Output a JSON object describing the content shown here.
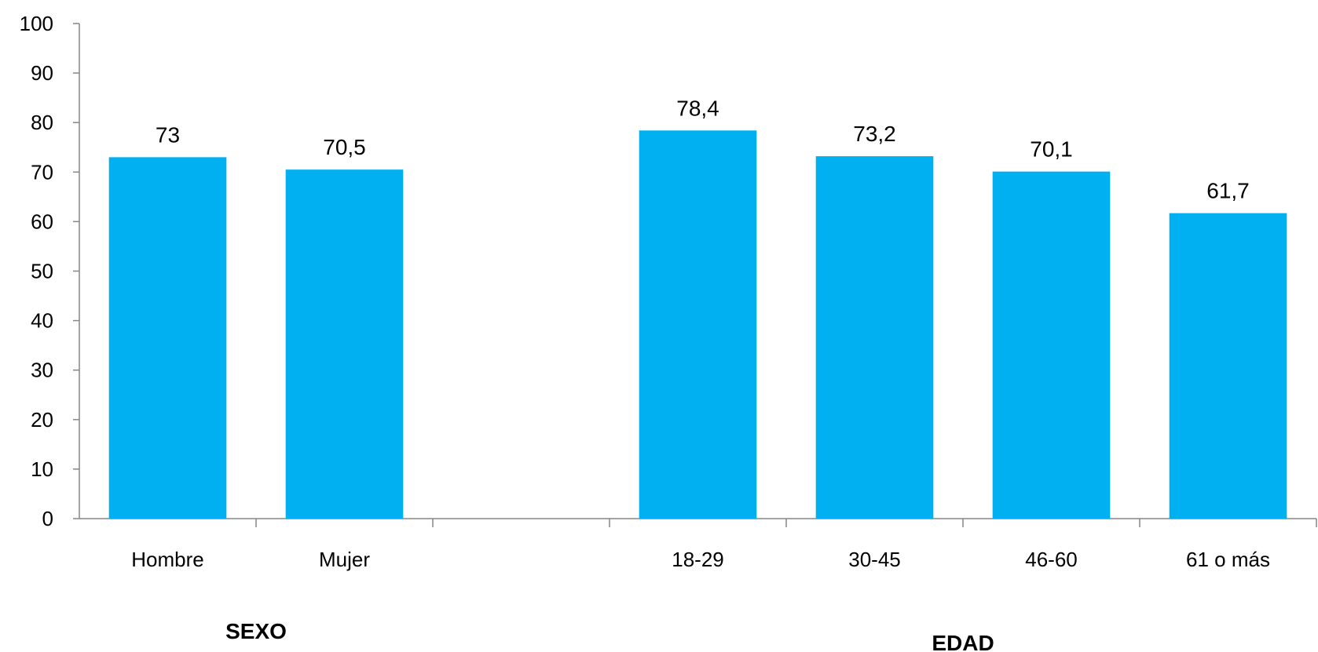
{
  "chart_data": {
    "type": "bar",
    "categories": [
      "Hombre",
      "Mujer",
      "",
      "18-29",
      "30-45",
      "46-60",
      "61 o más"
    ],
    "values": [
      73,
      70.5,
      null,
      78.4,
      73.2,
      70.1,
      61.7
    ],
    "value_labels": [
      "73",
      "70,5",
      "",
      "78,4",
      "73,2",
      "70,1",
      "61,7"
    ],
    "ylim": [
      0,
      100
    ],
    "yticks": [
      "0",
      "10",
      "20",
      "30",
      "40",
      "50",
      "60",
      "70",
      "80",
      "90",
      "100"
    ],
    "groups": [
      {
        "label": "SEXO",
        "categories": [
          "Hombre",
          "Mujer"
        ]
      },
      {
        "label": "EDAD",
        "categories": [
          "18-29",
          "30-45",
          "46-60",
          "61 o más"
        ]
      }
    ],
    "title": "",
    "xlabel": "",
    "ylabel": "",
    "grid": false,
    "legend": "none",
    "colors": {
      "bar": "#00B0F0",
      "axis": "#868686",
      "text": "#000000"
    }
  }
}
